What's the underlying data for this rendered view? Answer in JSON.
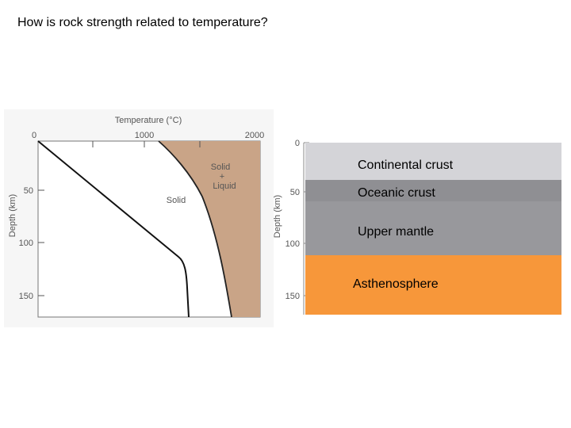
{
  "slide": {
    "title": "How is rock strength related to temperature?"
  },
  "left_figure": {
    "x_axis_title": "Temperature (°C)",
    "y_axis_title": "Depth (km)",
    "x_ticks": [
      "0",
      "1000",
      "2000"
    ],
    "y_ticks": [
      "50",
      "100",
      "150"
    ],
    "region_solid_liquid": [
      "Solid",
      "+",
      "Liquid"
    ],
    "region_solid": "Solid",
    "colors": {
      "melt_region": "#c9a487",
      "plot_bg": "#ffffff",
      "line": "#000000"
    }
  },
  "right_figure": {
    "y_axis_title": "Depth (km)",
    "y_ticks": [
      "0",
      "50",
      "100",
      "150"
    ],
    "layers": [
      {
        "name": "Continental crust",
        "color": "#d4d4d8"
      },
      {
        "name": "Oceanic crust",
        "color": "#8f8f93"
      },
      {
        "name": "Upper mantle",
        "color": "#98989c"
      },
      {
        "name": "Asthenosphere",
        "color": "#f7973a"
      }
    ]
  }
}
